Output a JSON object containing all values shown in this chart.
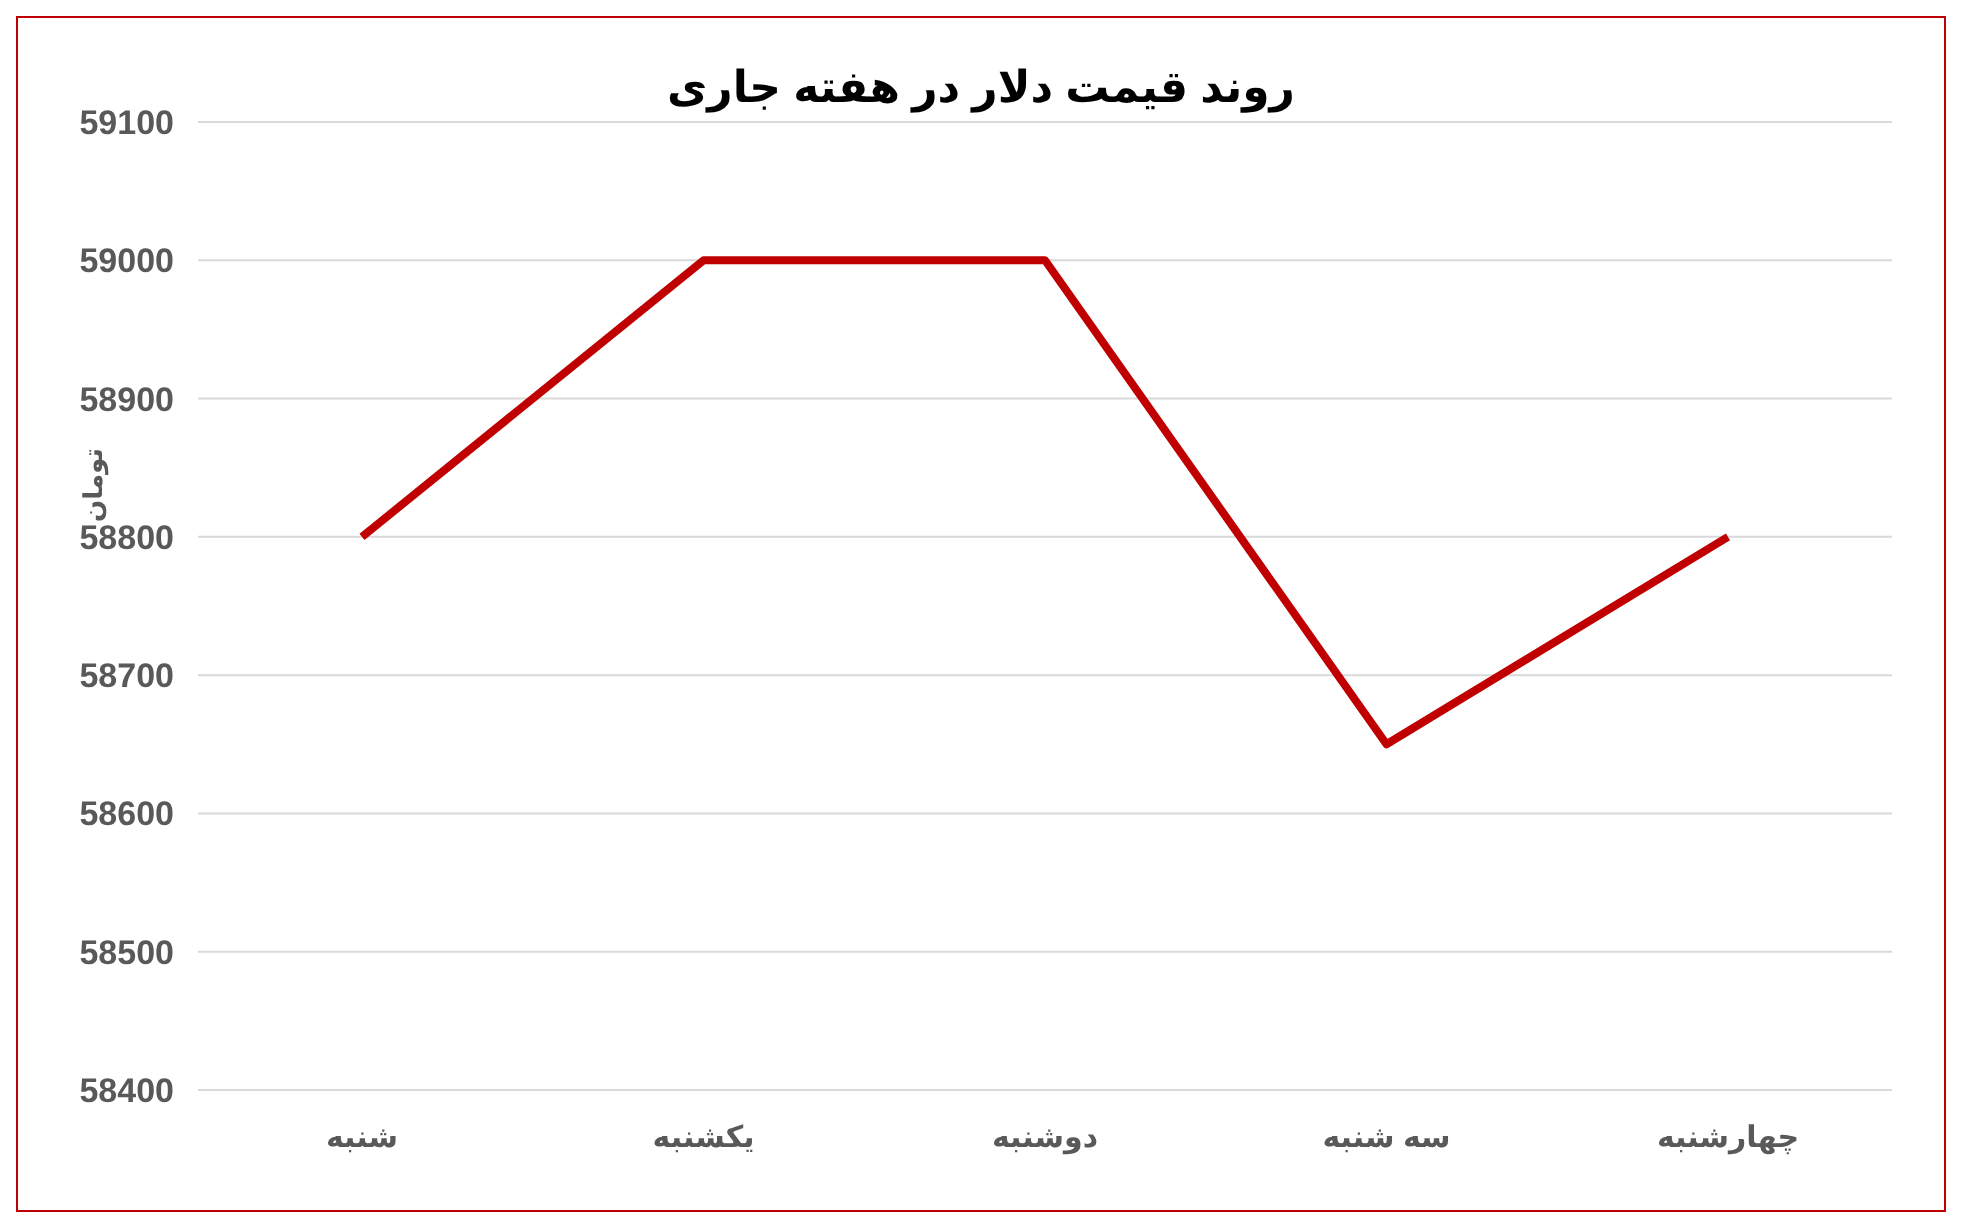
{
  "chart_data": {
    "type": "line",
    "title": "روند قیمت دلار در هفته جاری",
    "ylabel": "تومان",
    "categories": [
      "شنبه",
      "یکشنبه",
      "دوشنبه",
      "سه شنبه",
      "چهارشنبه"
    ],
    "series": [
      {
        "color": "#c00000",
        "values": [
          58800,
          59000,
          59000,
          58650,
          58800
        ]
      }
    ],
    "ylim": [
      58400,
      59100
    ],
    "yticks": [
      58400,
      58500,
      58600,
      58700,
      58800,
      58900,
      59000,
      59100
    ],
    "grid": "y",
    "legend": false,
    "marker": "none",
    "line_style": "solid"
  }
}
